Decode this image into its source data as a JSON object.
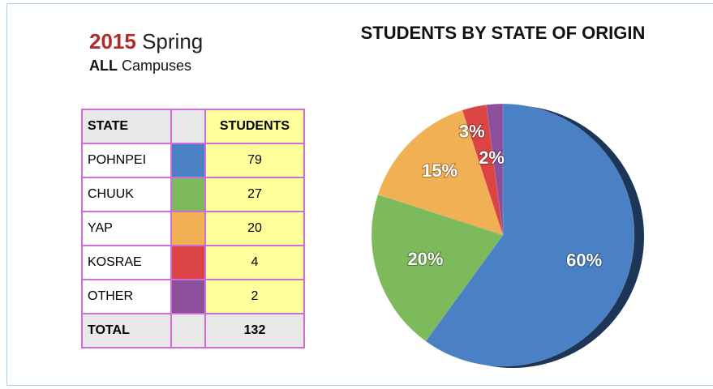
{
  "header": {
    "year": "2015",
    "term": "Spring",
    "scope": "ALL",
    "scope_rest": "Campuses"
  },
  "table": {
    "columns": [
      "STATE",
      "STUDENTS"
    ],
    "rows": [
      [
        "POHNPEI",
        79
      ],
      [
        "CHUUK",
        27
      ],
      [
        "YAP",
        20
      ],
      [
        "KOSRAE",
        4
      ],
      [
        "OTHER",
        2
      ]
    ],
    "total": {
      "label": "TOTAL",
      "value": 132
    }
  },
  "chart_data": {
    "type": "pie",
    "title": "STUDENTS BY STATE OF ORIGIN",
    "values": [
      60,
      20,
      15,
      3,
      2
    ],
    "value_labels": [
      "60%",
      "20%",
      "15%",
      "3%",
      "2%"
    ],
    "colors": [
      "#4a80c4",
      "#7cba5c",
      "#f2b055",
      "#dc4444",
      "#8c4f9c"
    ]
  }
}
